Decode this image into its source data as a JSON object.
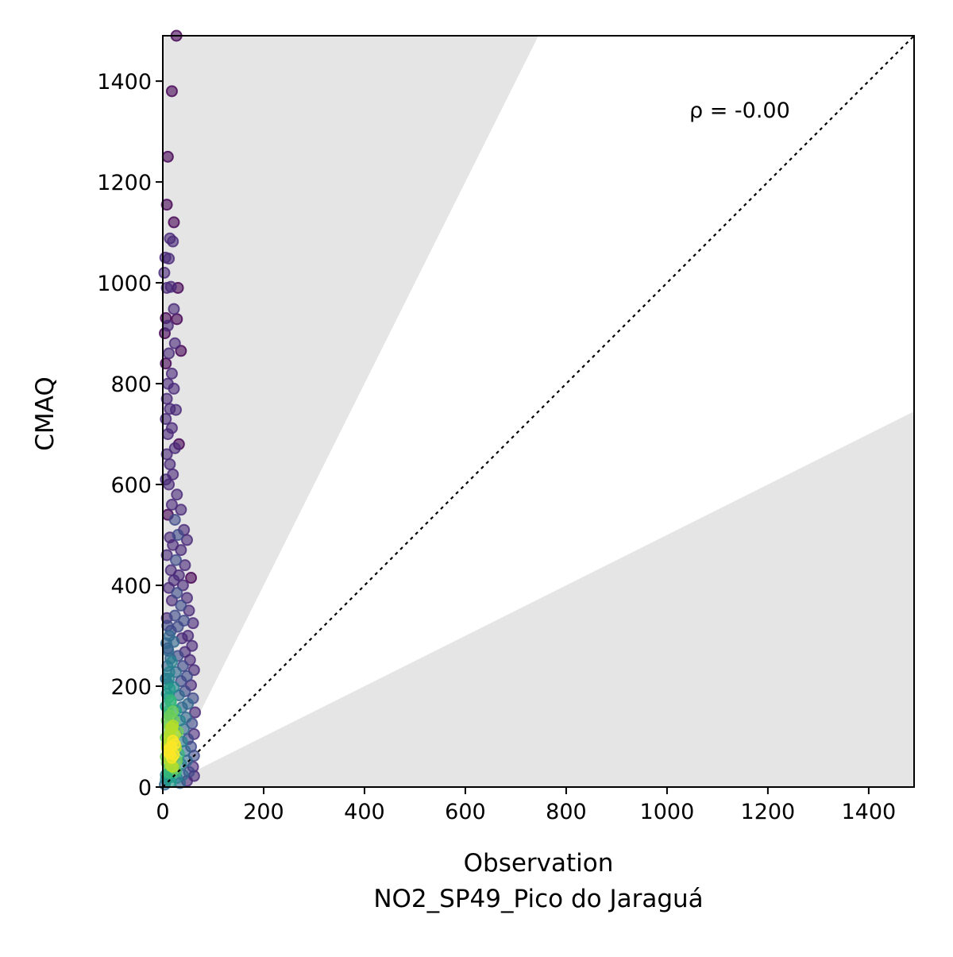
{
  "chart_data": {
    "type": "scatter",
    "xlabel": "Observation",
    "xlabel_line2": "NO2_SP49_Pico do Jaraguá",
    "ylabel": "CMAQ",
    "xlim": [
      0,
      1490
    ],
    "ylim": [
      0,
      1490
    ],
    "xticks": [
      0,
      200,
      400,
      600,
      800,
      1000,
      1200,
      1400
    ],
    "yticks": [
      0,
      200,
      400,
      600,
      800,
      1000,
      1200,
      1400
    ],
    "annotation": "ρ = -0.00",
    "reference_line": "1:1",
    "shaded_region": "outside factor-of-2 band (y > 2x and y < 0.5x)",
    "colormap": "viridis (point density)",
    "shade_color": "#e5e5e5",
    "grid": false,
    "legend": "none",
    "points": [
      [
        27,
        1490
      ],
      [
        18,
        1380
      ],
      [
        10,
        1250
      ],
      [
        8,
        1155
      ],
      [
        22,
        1120
      ],
      [
        14,
        1088
      ],
      [
        20,
        1082
      ],
      [
        5,
        1050
      ],
      [
        12,
        1048
      ],
      [
        3,
        1020
      ],
      [
        8,
        990
      ],
      [
        16,
        992
      ],
      [
        30,
        990
      ],
      [
        22,
        948
      ],
      [
        6,
        930
      ],
      [
        28,
        928
      ],
      [
        10,
        915
      ],
      [
        4,
        900
      ],
      [
        24,
        880
      ],
      [
        36,
        865
      ],
      [
        12,
        860
      ],
      [
        6,
        840
      ],
      [
        18,
        820
      ],
      [
        10,
        800
      ],
      [
        22,
        790
      ],
      [
        8,
        770
      ],
      [
        14,
        750
      ],
      [
        26,
        748
      ],
      [
        6,
        730
      ],
      [
        18,
        712
      ],
      [
        10,
        700
      ],
      [
        32,
        680
      ],
      [
        24,
        672
      ],
      [
        8,
        660
      ],
      [
        14,
        640
      ],
      [
        20,
        620
      ],
      [
        6,
        610
      ],
      [
        12,
        600
      ],
      [
        28,
        580
      ],
      [
        18,
        560
      ],
      [
        36,
        550
      ],
      [
        10,
        540
      ],
      [
        24,
        530
      ],
      [
        42,
        510
      ],
      [
        30,
        500
      ],
      [
        14,
        495
      ],
      [
        48,
        490
      ],
      [
        20,
        480
      ],
      [
        36,
        470
      ],
      [
        8,
        460
      ],
      [
        26,
        450
      ],
      [
        44,
        440
      ],
      [
        16,
        430
      ],
      [
        32,
        420
      ],
      [
        56,
        415
      ],
      [
        22,
        410
      ],
      [
        40,
        400
      ],
      [
        12,
        395
      ],
      [
        28,
        385
      ],
      [
        48,
        375
      ],
      [
        18,
        370
      ],
      [
        36,
        360
      ],
      [
        52,
        350
      ],
      [
        24,
        340
      ],
      [
        8,
        335
      ],
      [
        42,
        330
      ],
      [
        60,
        325
      ],
      [
        30,
        318
      ],
      [
        16,
        310
      ],
      [
        50,
        300
      ],
      [
        38,
        295
      ],
      [
        22,
        288
      ],
      [
        58,
        280
      ],
      [
        10,
        275
      ],
      [
        44,
        268
      ],
      [
        30,
        260
      ],
      [
        54,
        252
      ],
      [
        18,
        248
      ],
      [
        40,
        240
      ],
      [
        62,
        232
      ],
      [
        26,
        228
      ],
      [
        48,
        220
      ],
      [
        12,
        215
      ],
      [
        36,
        210
      ],
      [
        56,
        202
      ],
      [
        22,
        198
      ],
      [
        44,
        190
      ],
      [
        32,
        182
      ],
      [
        60,
        176
      ],
      [
        16,
        172
      ],
      [
        50,
        165
      ],
      [
        38,
        158
      ],
      [
        26,
        152
      ],
      [
        64,
        148
      ],
      [
        10,
        145
      ],
      [
        46,
        138
      ],
      [
        34,
        132
      ],
      [
        58,
        126
      ],
      [
        20,
        122
      ],
      [
        42,
        115
      ],
      [
        30,
        110
      ],
      [
        62,
        105
      ],
      [
        14,
        100
      ],
      [
        50,
        95
      ],
      [
        38,
        90
      ],
      [
        24,
        85
      ],
      [
        56,
        80
      ],
      [
        8,
        78
      ],
      [
        44,
        72
      ],
      [
        32,
        66
      ],
      [
        62,
        62
      ],
      [
        18,
        58
      ],
      [
        48,
        52
      ],
      [
        36,
        46
      ],
      [
        60,
        40
      ],
      [
        24,
        36
      ],
      [
        52,
        30
      ],
      [
        12,
        28
      ],
      [
        40,
        24
      ],
      [
        62,
        22
      ],
      [
        28,
        18
      ],
      [
        6,
        15
      ],
      [
        48,
        12
      ],
      [
        16,
        10
      ],
      [
        34,
        8
      ],
      [
        4,
        5
      ],
      [
        9,
        320
      ],
      [
        13,
        300
      ],
      [
        7,
        285
      ],
      [
        11,
        270
      ],
      [
        15,
        255
      ],
      [
        9,
        240
      ],
      [
        13,
        228
      ],
      [
        6,
        215
      ],
      [
        10,
        205
      ],
      [
        14,
        195
      ],
      [
        8,
        185
      ],
      [
        12,
        178
      ],
      [
        16,
        168
      ],
      [
        6,
        160
      ],
      [
        10,
        150
      ],
      [
        14,
        142
      ],
      [
        8,
        132
      ],
      [
        12,
        125
      ],
      [
        16,
        118
      ],
      [
        10,
        112
      ],
      [
        14,
        105
      ],
      [
        6,
        98
      ],
      [
        12,
        92
      ],
      [
        8,
        85
      ],
      [
        16,
        80
      ],
      [
        10,
        72
      ],
      [
        14,
        66
      ],
      [
        6,
        60
      ],
      [
        12,
        54
      ],
      [
        8,
        48
      ],
      [
        16,
        42
      ],
      [
        10,
        36
      ],
      [
        14,
        30
      ],
      [
        6,
        24
      ],
      [
        12,
        18
      ],
      [
        20,
        150
      ],
      [
        22,
        132
      ],
      [
        18,
        118
      ],
      [
        24,
        104
      ],
      [
        20,
        92
      ],
      [
        26,
        78
      ],
      [
        22,
        64
      ],
      [
        28,
        52
      ],
      [
        20,
        40
      ],
      [
        26,
        30
      ]
    ]
  }
}
